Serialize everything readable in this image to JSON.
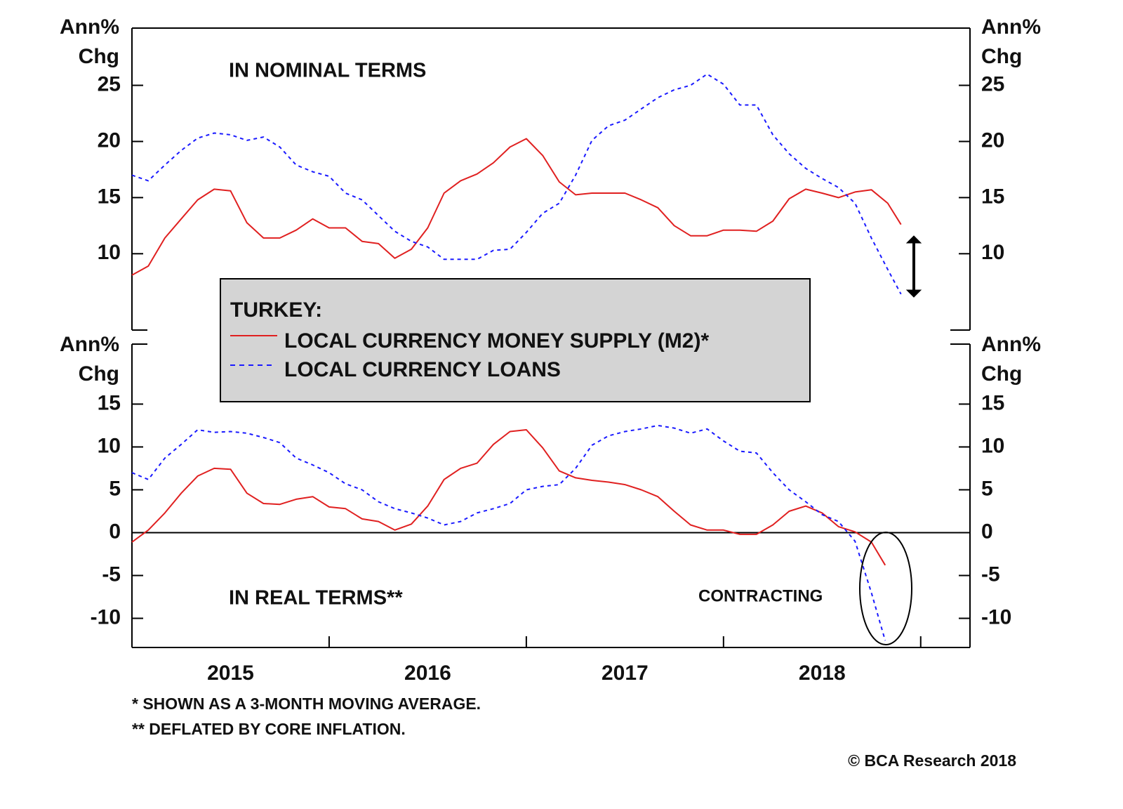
{
  "chart_data": [
    {
      "type": "line",
      "ylabel": [
        "Ann%",
        "Chg"
      ],
      "annotation": "IN NOMINAL TERMS",
      "xlim": [
        2015,
        2019.25
      ],
      "ylim": [
        3.2,
        30.1
      ],
      "yticks": [
        10,
        15,
        20,
        25
      ],
      "x": [
        2015,
        2015.083,
        2015.167,
        2015.25,
        2015.333,
        2015.417,
        2015.5,
        2015.583,
        2015.667,
        2015.75,
        2015.833,
        2015.917,
        2016,
        2016.083,
        2016.167,
        2016.25,
        2016.333,
        2016.417,
        2016.5,
        2016.583,
        2016.667,
        2016.75,
        2016.833,
        2016.917,
        2017,
        2017.083,
        2017.167,
        2017.25,
        2017.333,
        2017.417,
        2017.5,
        2017.583,
        2017.667,
        2017.75,
        2017.833,
        2017.917,
        2018,
        2018.083,
        2018.167,
        2018.25,
        2018.333,
        2018.417,
        2018.5,
        2018.583,
        2018.667,
        2018.75,
        2018.833,
        2018.9
      ],
      "series": [
        {
          "name": "LOCAL CURRENCY MONEY SUPPLY (M2)*",
          "color": "#e02020",
          "style": "solid",
          "values": [
            8.1,
            8.9,
            11.4,
            13.1,
            14.8,
            15.75,
            15.6,
            12.75,
            11.4,
            11.4,
            12.1,
            13.1,
            12.3,
            12.3,
            11.1,
            10.9,
            9.6,
            10.4,
            12.3,
            15.4,
            16.5,
            17.1,
            18.1,
            19.5,
            20.25,
            18.75,
            16.4,
            15.25,
            15.4,
            15.4,
            15.4,
            14.8,
            14.1,
            12.5,
            11.6,
            11.6,
            12.1,
            12.1,
            12.0,
            12.9,
            14.9,
            15.75,
            15.4,
            15.0,
            15.5,
            15.7,
            14.5,
            12.6
          ]
        },
        {
          "name": "LOCAL CURRENCY LOANS",
          "color": "#1a1aff",
          "style": "dashed",
          "values": [
            17.0,
            16.5,
            17.9,
            19.2,
            20.3,
            20.75,
            20.6,
            20.1,
            20.4,
            19.5,
            17.9,
            17.3,
            16.9,
            15.4,
            14.8,
            13.4,
            12.0,
            11.1,
            10.6,
            9.5,
            9.5,
            9.5,
            10.3,
            10.4,
            11.9,
            13.6,
            14.5,
            17.0,
            20.1,
            21.4,
            21.9,
            22.9,
            23.9,
            24.6,
            25.0,
            26.0,
            25.1,
            23.25,
            23.25,
            20.6,
            18.9,
            17.6,
            16.7,
            15.9,
            14.5,
            11.4,
            8.6,
            6.4
          ]
        }
      ]
    },
    {
      "type": "line",
      "ylabel": [
        "Ann%",
        "Chg"
      ],
      "annotations": [
        "IN REAL TERMS**",
        "CONTRACTING"
      ],
      "xlim": [
        2015,
        2019.25
      ],
      "ylim": [
        -13.4,
        22
      ],
      "yticks": [
        -10,
        -5,
        0,
        5,
        10,
        15
      ],
      "hline": 0,
      "xticks": [
        {
          "value": 2015.5,
          "label": "2015"
        },
        {
          "value": 2016.5,
          "label": "2016"
        },
        {
          "value": 2017.5,
          "label": "2017"
        },
        {
          "value": 2018.5,
          "label": "2018"
        }
      ],
      "xminor": [
        2016,
        2017,
        2018,
        2019
      ],
      "x": [
        2015,
        2015.083,
        2015.167,
        2015.25,
        2015.333,
        2015.417,
        2015.5,
        2015.583,
        2015.667,
        2015.75,
        2015.833,
        2015.917,
        2016,
        2016.083,
        2016.167,
        2016.25,
        2016.333,
        2016.417,
        2016.5,
        2016.583,
        2016.667,
        2016.75,
        2016.833,
        2016.917,
        2017,
        2017.083,
        2017.167,
        2017.25,
        2017.333,
        2017.417,
        2017.5,
        2017.583,
        2017.667,
        2017.75,
        2017.833,
        2017.917,
        2018,
        2018.083,
        2018.167,
        2018.25,
        2018.333,
        2018.417,
        2018.5,
        2018.583,
        2018.667,
        2018.75,
        2018.82
      ],
      "series": [
        {
          "color": "#e02020",
          "style": "solid",
          "values": [
            -1.1,
            0.3,
            2.3,
            4.6,
            6.6,
            7.5,
            7.4,
            4.6,
            3.4,
            3.3,
            3.9,
            4.2,
            3.0,
            2.8,
            1.6,
            1.3,
            0.3,
            1.0,
            3.1,
            6.2,
            7.5,
            8.1,
            10.3,
            11.8,
            12.0,
            9.9,
            7.2,
            6.4,
            6.1,
            5.9,
            5.6,
            5.0,
            4.2,
            2.5,
            0.9,
            0.3,
            0.3,
            -0.2,
            -0.2,
            0.9,
            2.5,
            3.1,
            2.3,
            0.7,
            0.1,
            -1.1,
            -3.8
          ]
        },
        {
          "color": "#1a1aff",
          "style": "dashed",
          "values": [
            7.0,
            6.2,
            8.7,
            10.3,
            12.0,
            11.7,
            11.8,
            11.6,
            11.1,
            10.5,
            8.7,
            7.9,
            7.0,
            5.7,
            5.0,
            3.6,
            2.8,
            2.3,
            1.7,
            0.9,
            1.3,
            2.3,
            2.8,
            3.4,
            5.0,
            5.4,
            5.6,
            7.5,
            10.2,
            11.3,
            11.8,
            12.1,
            12.5,
            12.2,
            11.6,
            12.1,
            10.7,
            9.5,
            9.3,
            7.0,
            5.0,
            3.6,
            2.1,
            1.3,
            -1.0,
            -7.0,
            -12.6
          ]
        }
      ]
    }
  ],
  "legend": {
    "title": "TURKEY:"
  },
  "footnotes": [
    "*  SHOWN AS A 3-MONTH MOVING AVERAGE.",
    "** DEFLATED BY CORE INFLATION."
  ],
  "source": "© BCA Research 2018"
}
